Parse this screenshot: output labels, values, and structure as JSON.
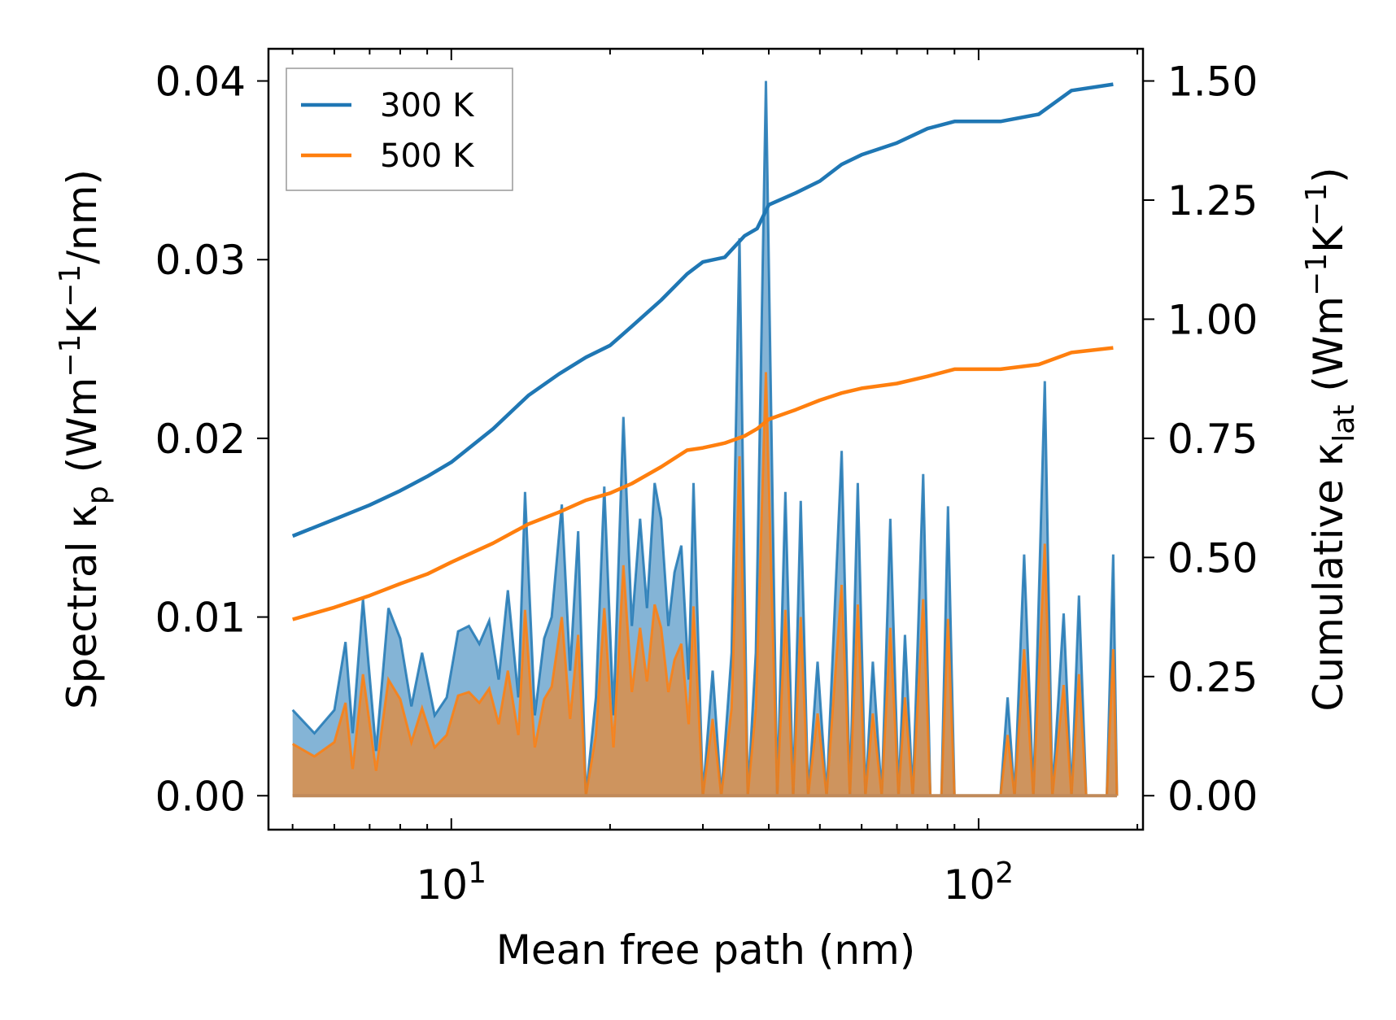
{
  "chart_data": {
    "type": "line",
    "x_scale": "log",
    "xlabel": "Mean free path (nm)",
    "ylabel_left": {
      "prefix": "Spectral κ",
      "sub": "p",
      "units_pre": " (Wm",
      "sup1": "−1",
      "mid": "K",
      "sup2": "−1",
      "units_post": "/nm)"
    },
    "ylabel_right": {
      "prefix": "Cumulative κ",
      "sub": "lat",
      "units_pre": " (Wm",
      "sup1": "−1",
      "mid": "K",
      "sup2": "−1",
      "units_post": ")"
    },
    "xlim": [
      4.5,
      205
    ],
    "ylim_left": [
      -0.0019,
      0.0418
    ],
    "ylim_right": [
      -0.0713,
      1.5675
    ],
    "x_ticks": [
      {
        "value": 10,
        "base": "10",
        "exp": "1"
      },
      {
        "value": 100,
        "base": "10",
        "exp": "2"
      }
    ],
    "y_ticks_left": [
      {
        "value": 0.0,
        "label": "0.00"
      },
      {
        "value": 0.01,
        "label": "0.01"
      },
      {
        "value": 0.02,
        "label": "0.02"
      },
      {
        "value": 0.03,
        "label": "0.03"
      },
      {
        "value": 0.04,
        "label": "0.04"
      }
    ],
    "y_ticks_right": [
      {
        "value": 0.0,
        "label": "0.00"
      },
      {
        "value": 0.25,
        "label": "0.25"
      },
      {
        "value": 0.5,
        "label": "0.50"
      },
      {
        "value": 0.75,
        "label": "0.75"
      },
      {
        "value": 1.0,
        "label": "1.00"
      },
      {
        "value": 1.25,
        "label": "1.25"
      },
      {
        "value": 1.5,
        "label": "1.50"
      }
    ],
    "legend": {
      "position": "top-left"
    },
    "series": [
      {
        "name": "300 K",
        "color": "#1f77b4",
        "cumulative": [
          [
            5.0,
            0.545
          ],
          [
            6.0,
            0.58
          ],
          [
            7.0,
            0.61
          ],
          [
            8.0,
            0.64
          ],
          [
            9.0,
            0.67
          ],
          [
            10.0,
            0.7
          ],
          [
            12.0,
            0.77
          ],
          [
            14.0,
            0.84
          ],
          [
            16.0,
            0.885
          ],
          [
            18.0,
            0.92
          ],
          [
            20.0,
            0.945
          ],
          [
            22.0,
            0.985
          ],
          [
            25.0,
            1.04
          ],
          [
            28.0,
            1.095
          ],
          [
            30.0,
            1.12
          ],
          [
            33.0,
            1.13
          ],
          [
            36.0,
            1.175
          ],
          [
            38.0,
            1.19
          ],
          [
            40.0,
            1.24
          ],
          [
            45.0,
            1.265
          ],
          [
            50.0,
            1.29
          ],
          [
            55.0,
            1.325
          ],
          [
            60.0,
            1.345
          ],
          [
            70.0,
            1.37
          ],
          [
            80.0,
            1.4
          ],
          [
            90.0,
            1.415
          ],
          [
            110.0,
            1.415
          ],
          [
            130.0,
            1.43
          ],
          [
            150.0,
            1.48
          ],
          [
            180.0,
            1.493
          ]
        ],
        "spectral": [
          [
            5.0,
            0.0048
          ],
          [
            5.5,
            0.0035
          ],
          [
            6.0,
            0.0048
          ],
          [
            6.3,
            0.0086
          ],
          [
            6.5,
            0.0035
          ],
          [
            6.8,
            0.011
          ],
          [
            7.2,
            0.0025
          ],
          [
            7.6,
            0.0105
          ],
          [
            8.0,
            0.0088
          ],
          [
            8.4,
            0.005
          ],
          [
            8.8,
            0.008
          ],
          [
            9.3,
            0.0045
          ],
          [
            9.8,
            0.0055
          ],
          [
            10.3,
            0.0092
          ],
          [
            10.8,
            0.0095
          ],
          [
            11.3,
            0.0085
          ],
          [
            11.8,
            0.0098
          ],
          [
            12.3,
            0.0065
          ],
          [
            12.8,
            0.0115
          ],
          [
            13.4,
            0.0055
          ],
          [
            13.8,
            0.017
          ],
          [
            14.4,
            0.0045
          ],
          [
            15.0,
            0.0088
          ],
          [
            15.5,
            0.01
          ],
          [
            16.2,
            0.0163
          ],
          [
            16.8,
            0.007
          ],
          [
            17.4,
            0.0148
          ],
          [
            18.0,
            0.0
          ],
          [
            18.8,
            0.0055
          ],
          [
            19.5,
            0.0173
          ],
          [
            20.3,
            0.0045
          ],
          [
            21.2,
            0.0212
          ],
          [
            22.0,
            0.0095
          ],
          [
            22.8,
            0.0155
          ],
          [
            23.5,
            0.0105
          ],
          [
            24.3,
            0.0175
          ],
          [
            25.0,
            0.0155
          ],
          [
            25.8,
            0.0095
          ],
          [
            26.5,
            0.0125
          ],
          [
            27.3,
            0.014
          ],
          [
            28.2,
            0.0065
          ],
          [
            28.8,
            0.0175
          ],
          [
            30.0,
            0.0
          ],
          [
            31.3,
            0.007
          ],
          [
            32.5,
            0.0
          ],
          [
            34.0,
            0.008
          ],
          [
            35.2,
            0.0312
          ],
          [
            36.5,
            0.0
          ],
          [
            37.8,
            0.008
          ],
          [
            39.5,
            0.04
          ],
          [
            41.5,
            0.0
          ],
          [
            43.0,
            0.017
          ],
          [
            44.5,
            0.0
          ],
          [
            46.0,
            0.0165
          ],
          [
            47.5,
            0.0
          ],
          [
            49.5,
            0.0075
          ],
          [
            51.5,
            0.0
          ],
          [
            53.0,
            0.0085
          ],
          [
            55.0,
            0.0193
          ],
          [
            57.0,
            0.0
          ],
          [
            59.0,
            0.0175
          ],
          [
            61.0,
            0.0
          ],
          [
            63.0,
            0.0075
          ],
          [
            65.5,
            0.0
          ],
          [
            68.0,
            0.0155
          ],
          [
            70.5,
            0.0
          ],
          [
            72.5,
            0.009
          ],
          [
            75.0,
            0.0
          ],
          [
            78.5,
            0.018
          ],
          [
            81.0,
            0.0
          ],
          [
            85.0,
            0.0
          ],
          [
            87.5,
            0.0162
          ],
          [
            90.0,
            0.0
          ],
          [
            110.0,
            0.0
          ],
          [
            113.5,
            0.0055
          ],
          [
            117.0,
            0.0
          ],
          [
            122.0,
            0.0135
          ],
          [
            127.0,
            0.0
          ],
          [
            133.5,
            0.0232
          ],
          [
            138.0,
            0.0
          ],
          [
            145.0,
            0.0102
          ],
          [
            150.0,
            0.0
          ],
          [
            155.0,
            0.0112
          ],
          [
            160.0,
            0.0
          ],
          [
            175.0,
            0.0
          ],
          [
            180.0,
            0.0135
          ],
          [
            183.0,
            0.0
          ]
        ]
      },
      {
        "name": "500 K",
        "color": "#ff7f0e",
        "cumulative": [
          [
            5.0,
            0.37
          ],
          [
            6.0,
            0.395
          ],
          [
            7.0,
            0.42
          ],
          [
            8.0,
            0.445
          ],
          [
            9.0,
            0.465
          ],
          [
            10.0,
            0.49
          ],
          [
            12.0,
            0.53
          ],
          [
            14.0,
            0.57
          ],
          [
            16.0,
            0.595
          ],
          [
            18.0,
            0.62
          ],
          [
            20.0,
            0.635
          ],
          [
            22.0,
            0.655
          ],
          [
            25.0,
            0.69
          ],
          [
            28.0,
            0.725
          ],
          [
            30.0,
            0.73
          ],
          [
            33.0,
            0.74
          ],
          [
            36.0,
            0.755
          ],
          [
            38.0,
            0.77
          ],
          [
            40.0,
            0.79
          ],
          [
            45.0,
            0.81
          ],
          [
            50.0,
            0.83
          ],
          [
            55.0,
            0.845
          ],
          [
            60.0,
            0.855
          ],
          [
            70.0,
            0.865
          ],
          [
            80.0,
            0.88
          ],
          [
            90.0,
            0.895
          ],
          [
            110.0,
            0.895
          ],
          [
            130.0,
            0.905
          ],
          [
            150.0,
            0.93
          ],
          [
            180.0,
            0.94
          ]
        ],
        "spectral": [
          [
            5.0,
            0.0029
          ],
          [
            5.5,
            0.0022
          ],
          [
            6.0,
            0.003
          ],
          [
            6.3,
            0.0052
          ],
          [
            6.5,
            0.0015
          ],
          [
            6.8,
            0.0068
          ],
          [
            7.2,
            0.0014
          ],
          [
            7.6,
            0.0065
          ],
          [
            8.0,
            0.0054
          ],
          [
            8.4,
            0.003
          ],
          [
            8.8,
            0.0049
          ],
          [
            9.3,
            0.0027
          ],
          [
            9.8,
            0.0034
          ],
          [
            10.3,
            0.0056
          ],
          [
            10.8,
            0.0058
          ],
          [
            11.3,
            0.0052
          ],
          [
            11.8,
            0.006
          ],
          [
            12.3,
            0.004
          ],
          [
            12.8,
            0.007
          ],
          [
            13.4,
            0.0034
          ],
          [
            13.8,
            0.0104
          ],
          [
            14.4,
            0.0027
          ],
          [
            15.0,
            0.0054
          ],
          [
            15.5,
            0.0061
          ],
          [
            16.2,
            0.01
          ],
          [
            16.8,
            0.0043
          ],
          [
            17.4,
            0.009
          ],
          [
            18.0,
            0.0
          ],
          [
            18.8,
            0.0034
          ],
          [
            19.5,
            0.0105
          ],
          [
            20.3,
            0.0027
          ],
          [
            21.2,
            0.0129
          ],
          [
            22.0,
            0.0058
          ],
          [
            22.8,
            0.0094
          ],
          [
            23.5,
            0.0064
          ],
          [
            24.3,
            0.0107
          ],
          [
            25.0,
            0.0094
          ],
          [
            25.8,
            0.0058
          ],
          [
            26.5,
            0.0076
          ],
          [
            27.3,
            0.0085
          ],
          [
            28.2,
            0.004
          ],
          [
            28.8,
            0.0106
          ],
          [
            30.0,
            0.0
          ],
          [
            31.3,
            0.0043
          ],
          [
            32.5,
            0.0
          ],
          [
            34.0,
            0.0049
          ],
          [
            35.2,
            0.019
          ],
          [
            36.5,
            0.0
          ],
          [
            37.8,
            0.0049
          ],
          [
            39.5,
            0.0237
          ],
          [
            41.5,
            0.0
          ],
          [
            43.0,
            0.0104
          ],
          [
            44.5,
            0.0
          ],
          [
            46.0,
            0.01
          ],
          [
            47.5,
            0.0
          ],
          [
            49.5,
            0.0046
          ],
          [
            51.5,
            0.0
          ],
          [
            53.0,
            0.0052
          ],
          [
            55.0,
            0.0118
          ],
          [
            57.0,
            0.0
          ],
          [
            59.0,
            0.0107
          ],
          [
            61.0,
            0.0
          ],
          [
            63.0,
            0.0046
          ],
          [
            65.5,
            0.0
          ],
          [
            68.0,
            0.0094
          ],
          [
            70.5,
            0.0
          ],
          [
            72.5,
            0.0055
          ],
          [
            75.0,
            0.0
          ],
          [
            78.5,
            0.011
          ],
          [
            81.0,
            0.0
          ],
          [
            85.0,
            0.0
          ],
          [
            87.5,
            0.0099
          ],
          [
            90.0,
            0.0
          ],
          [
            110.0,
            0.0
          ],
          [
            113.5,
            0.0034
          ],
          [
            117.0,
            0.0
          ],
          [
            122.0,
            0.0082
          ],
          [
            127.0,
            0.0
          ],
          [
            133.5,
            0.0141
          ],
          [
            138.0,
            0.0
          ],
          [
            145.0,
            0.0062
          ],
          [
            150.0,
            0.0
          ],
          [
            155.0,
            0.0068
          ],
          [
            160.0,
            0.0
          ],
          [
            175.0,
            0.0
          ],
          [
            180.0,
            0.0082
          ],
          [
            183.0,
            0.0
          ]
        ]
      }
    ]
  }
}
